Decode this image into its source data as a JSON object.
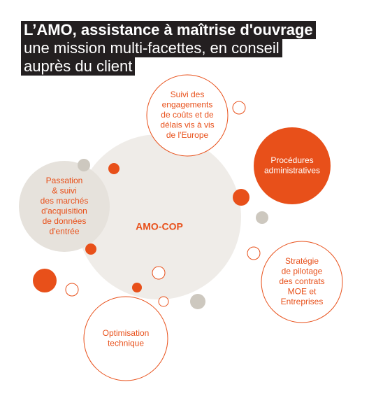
{
  "header": {
    "title_lines": [
      "L’AMO, assistance à maîtrise d'ouvrage",
      "une mission multi-facettes, en conseil",
      "auprès du client"
    ]
  },
  "center": {
    "label": "AMO-COP"
  },
  "nodes": [
    {
      "label_lines": [
        "Suivi des",
        "engagements",
        "de coûts et de",
        "délais vis à vis",
        "de l'Europe"
      ]
    },
    {
      "label_lines": [
        "Procédures",
        "administratives"
      ]
    },
    {
      "label_lines": [
        "Passation",
        "& suivi",
        "des marchés",
        "d'acquisition",
        "de données",
        "d'entrée"
      ]
    },
    {
      "label_lines": [
        "Stratégie",
        "de pilotage",
        "des contrats",
        "MOE et",
        "Entreprises"
      ]
    },
    {
      "label_lines": [
        "Optimisation",
        "technique"
      ]
    }
  ]
}
